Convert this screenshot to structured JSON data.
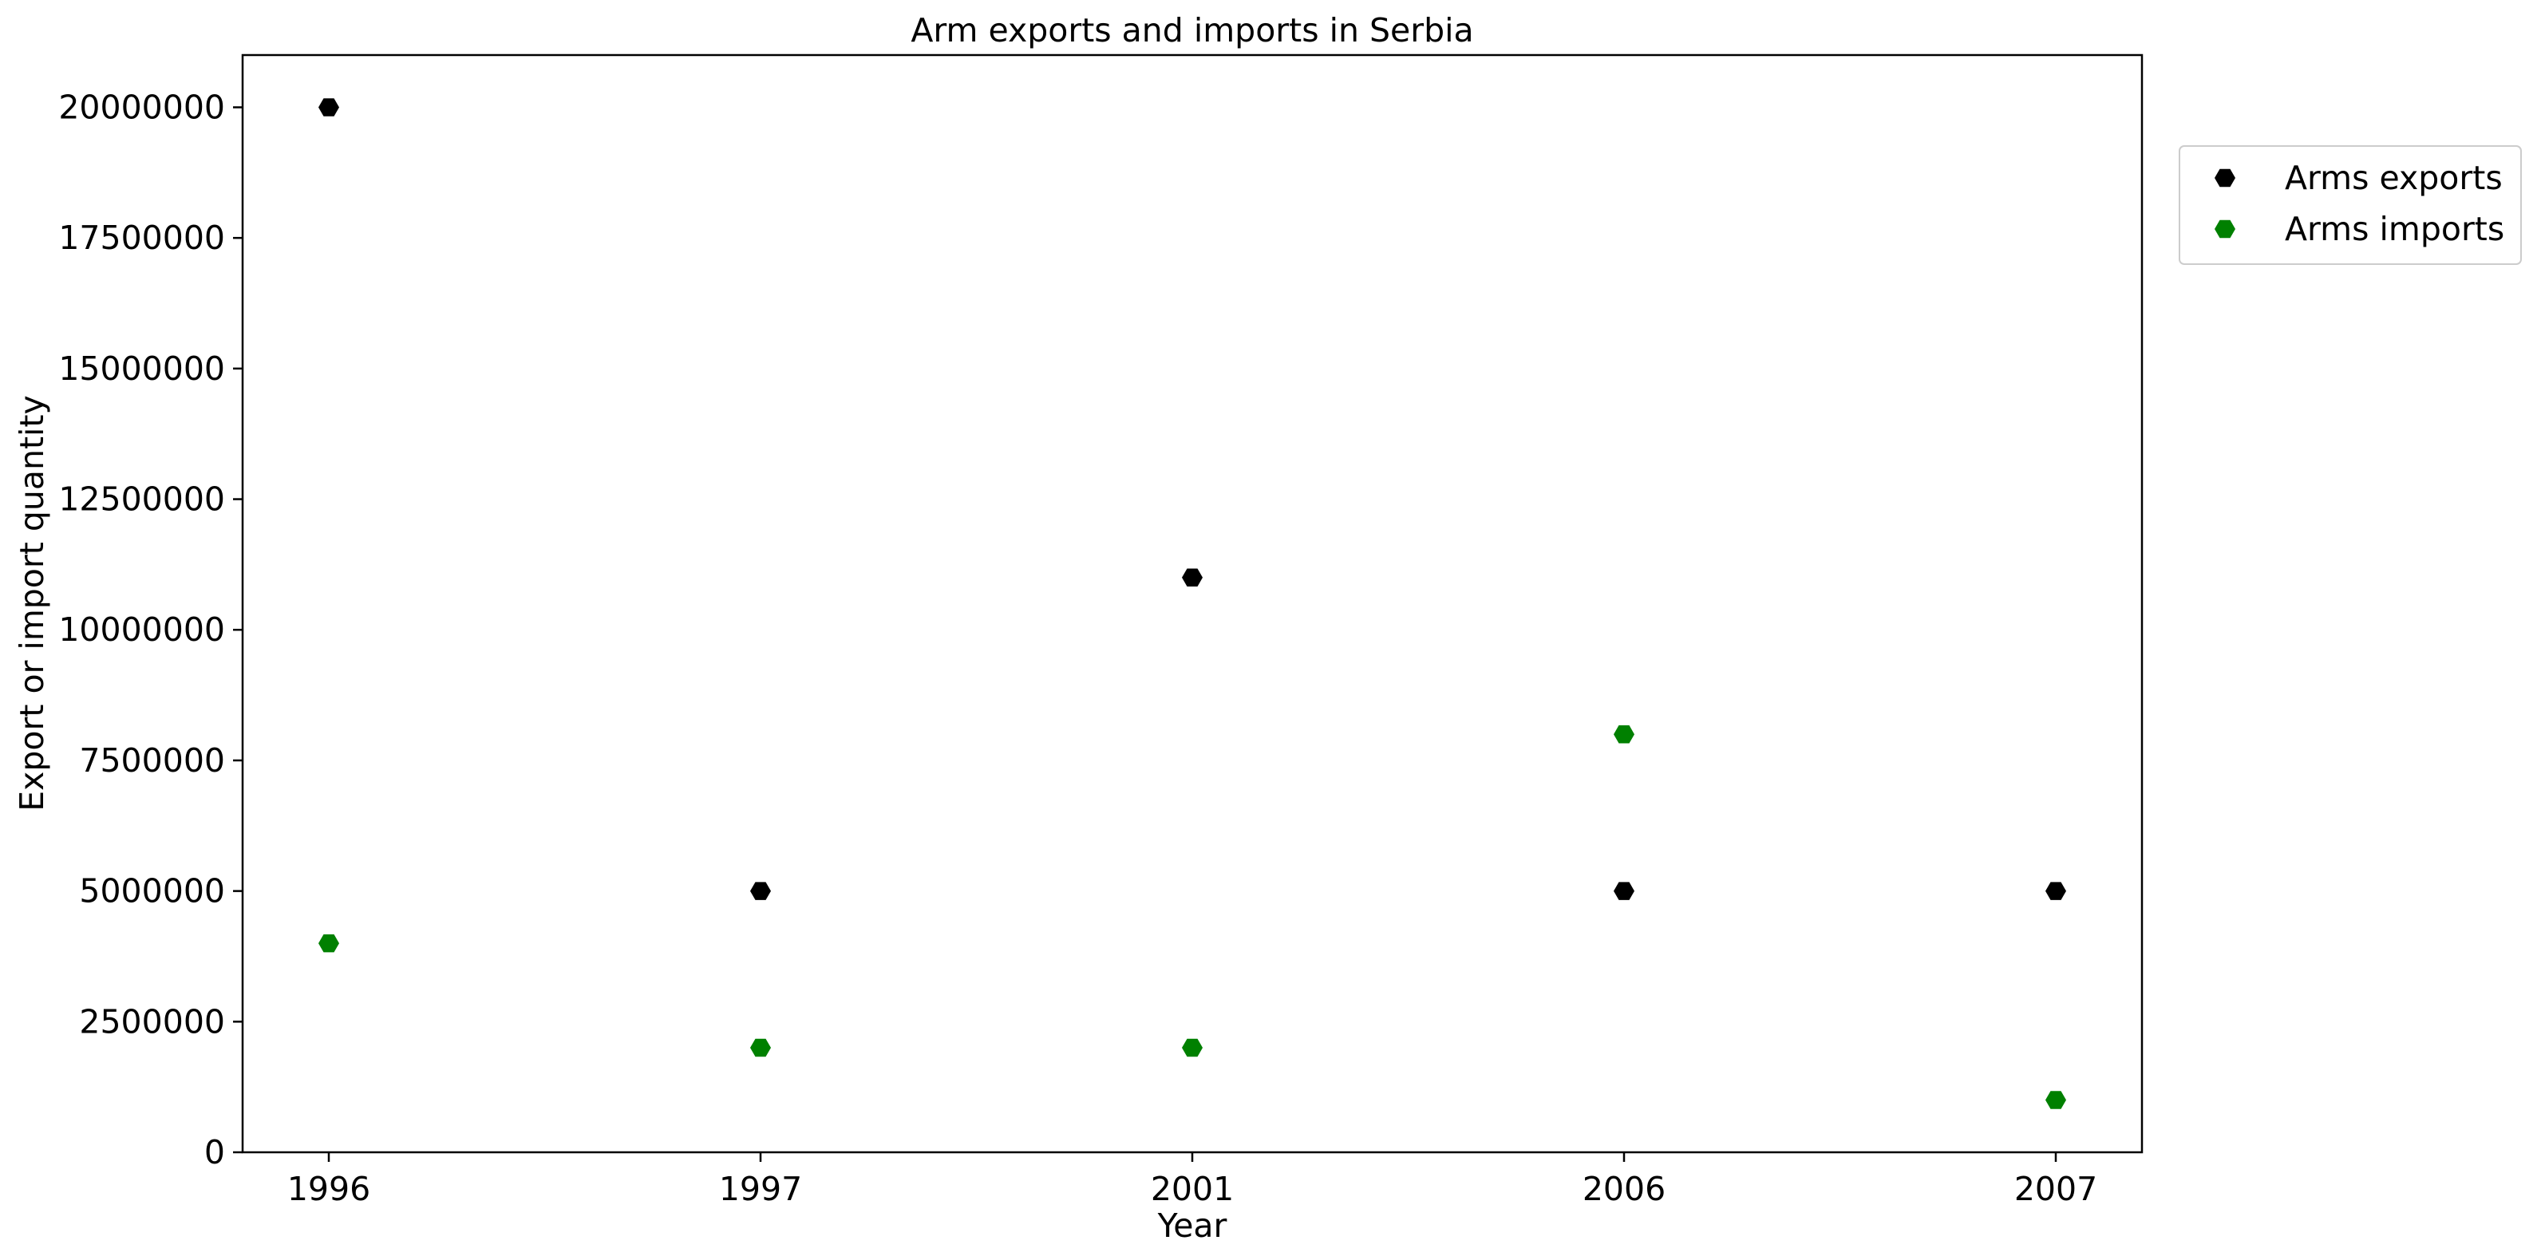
{
  "chart_data": {
    "type": "scatter",
    "title": "Arm exports and imports in Serbia",
    "xlabel": "Year",
    "ylabel": "Export or import quantity",
    "categories": [
      "1996",
      "1997",
      "2001",
      "2006",
      "2007"
    ],
    "ylim": [
      0,
      21000000
    ],
    "yticks": [
      0,
      2500000,
      5000000,
      7500000,
      10000000,
      12500000,
      15000000,
      17500000,
      20000000
    ],
    "ytick_labels": [
      "0",
      "2500000",
      "5000000",
      "7500000",
      "10000000",
      "12500000",
      "15000000",
      "17500000",
      "20000000"
    ],
    "grid": false,
    "legend_position": "outside-top-right",
    "marker": "hexagon",
    "series": [
      {
        "name": "Arms exports",
        "color": "#000000",
        "values": [
          20000000,
          5000000,
          11000000,
          5000000,
          5000000
        ]
      },
      {
        "name": "Arms imports",
        "color": "#008000",
        "values": [
          4000000,
          2000000,
          2000000,
          8000000,
          1000000
        ]
      }
    ]
  }
}
